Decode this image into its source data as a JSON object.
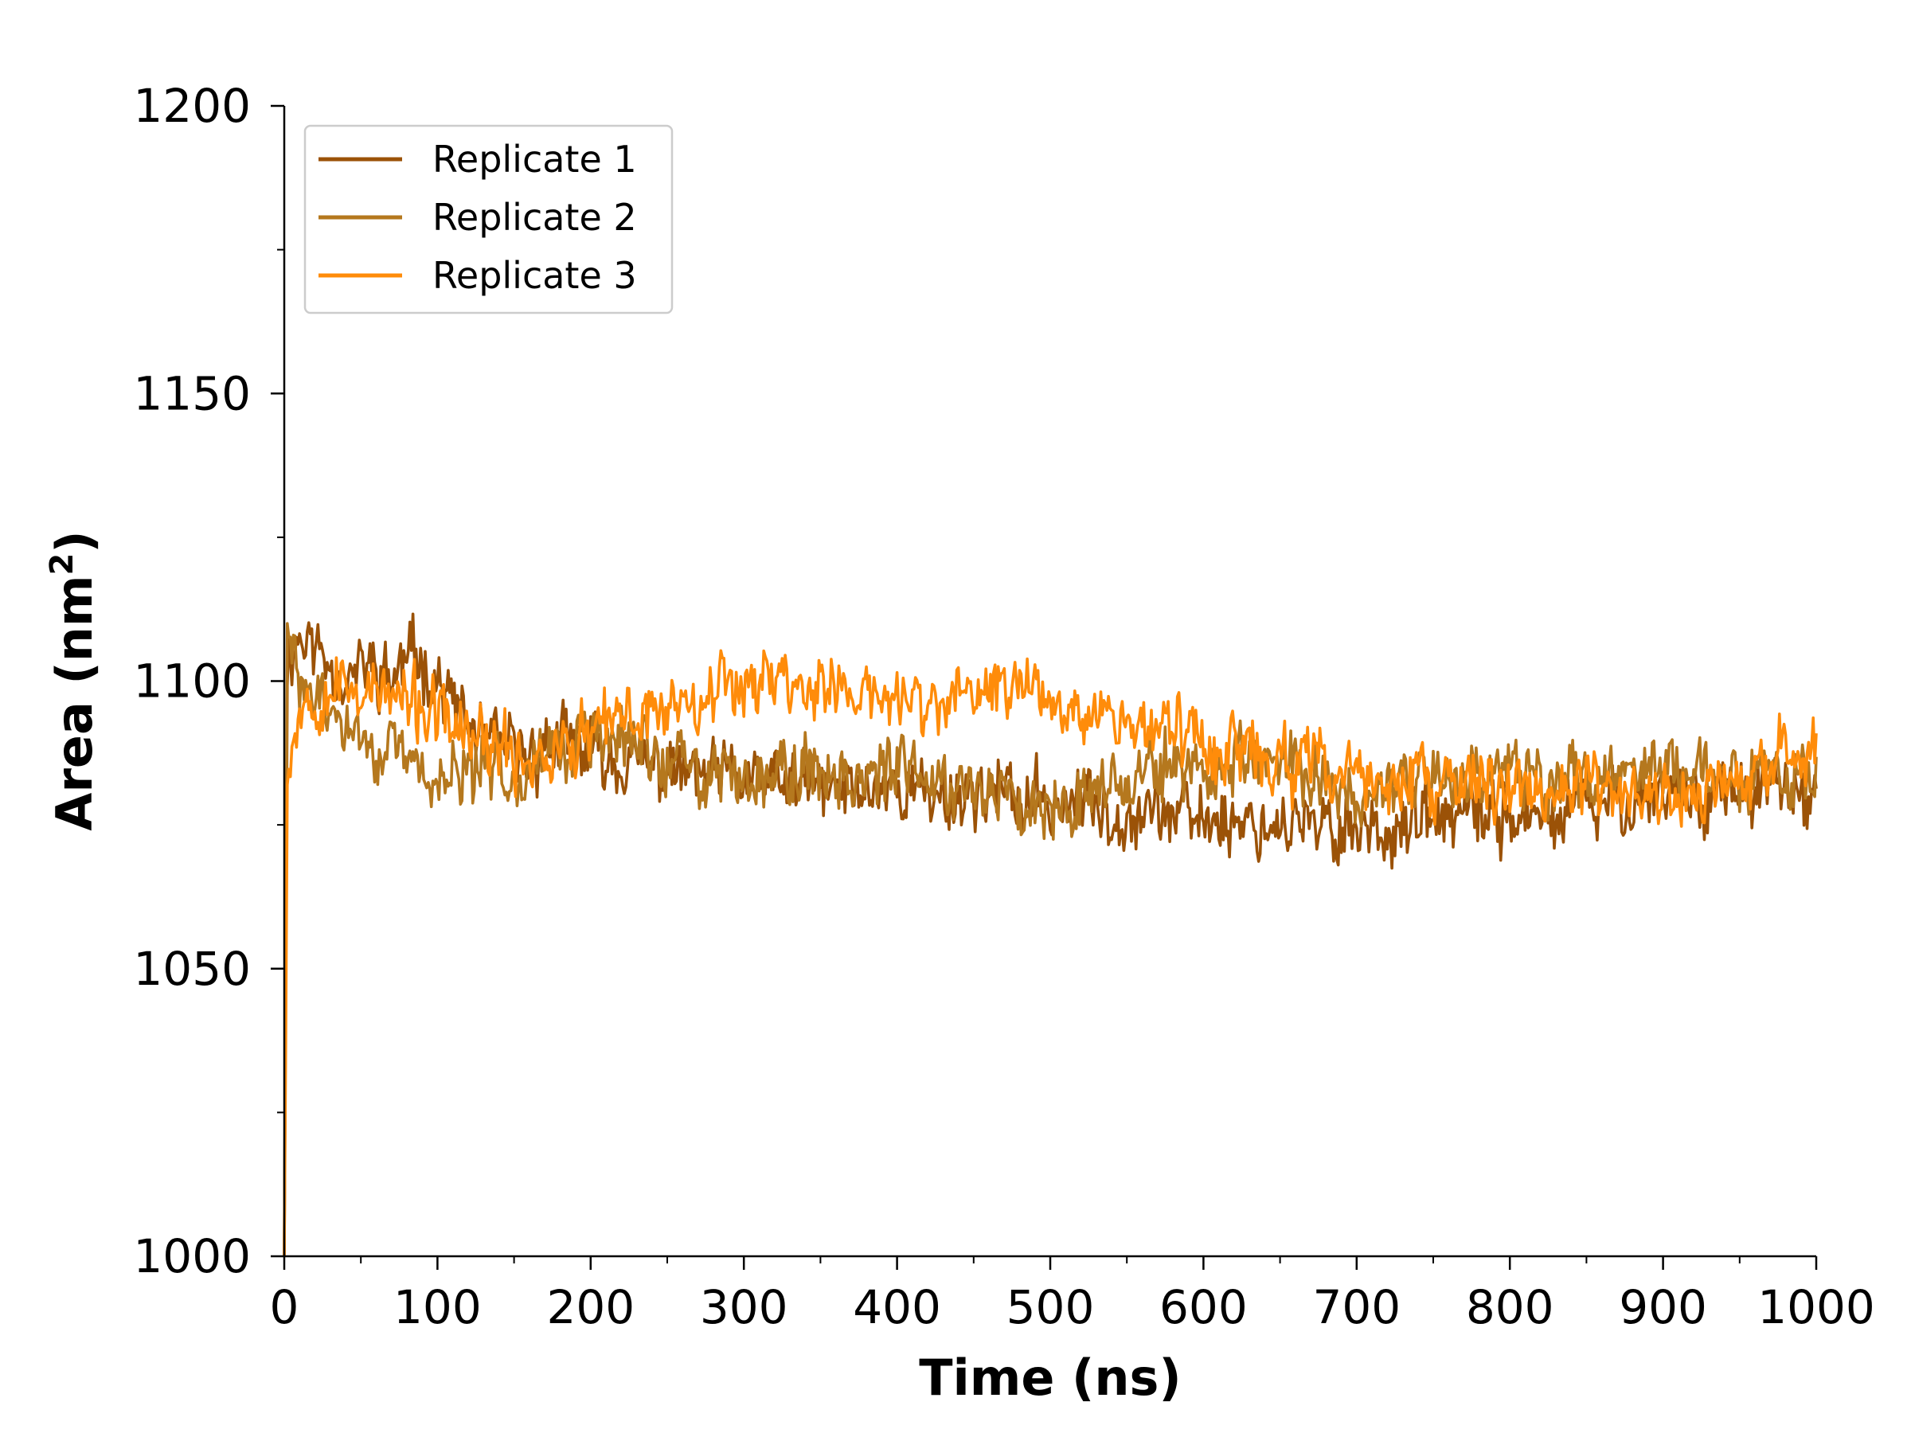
{
  "chart_data": {
    "type": "line",
    "xlabel": "Time (ns)",
    "ylabel_main": "Area (nm",
    "ylabel_sup": "2",
    "ylabel_close": ")",
    "xlim": [
      0,
      1000
    ],
    "ylim": [
      1000,
      1200
    ],
    "xticks": [
      "0",
      "100",
      "200",
      "300",
      "400",
      "500",
      "600",
      "700",
      "800",
      "900",
      "1000"
    ],
    "yticks": [
      "1000",
      "1050",
      "1100",
      "1150",
      "1200"
    ],
    "grid": false,
    "legend_position": "top-left",
    "series": [
      {
        "name": "Replicate 1",
        "color": "#9b5207",
        "points": [
          [
            0,
            1000
          ],
          [
            2,
            1104
          ],
          [
            10,
            1108
          ],
          [
            25,
            1105
          ],
          [
            40,
            1100
          ],
          [
            55,
            1103
          ],
          [
            70,
            1100
          ],
          [
            80,
            1104
          ],
          [
            90,
            1104
          ],
          [
            100,
            1100
          ],
          [
            110,
            1096
          ],
          [
            120,
            1092
          ],
          [
            140,
            1088
          ],
          [
            160,
            1087
          ],
          [
            180,
            1089
          ],
          [
            200,
            1088
          ],
          [
            220,
            1086
          ],
          [
            240,
            1085
          ],
          [
            260,
            1084
          ],
          [
            280,
            1083
          ],
          [
            300,
            1083
          ],
          [
            320,
            1082
          ],
          [
            340,
            1082
          ],
          [
            360,
            1081
          ],
          [
            380,
            1081
          ],
          [
            400,
            1082
          ],
          [
            420,
            1080
          ],
          [
            440,
            1080
          ],
          [
            460,
            1081
          ],
          [
            480,
            1079
          ],
          [
            500,
            1079
          ],
          [
            520,
            1079
          ],
          [
            540,
            1077
          ],
          [
            560,
            1078
          ],
          [
            580,
            1077
          ],
          [
            600,
            1076
          ],
          [
            620,
            1076
          ],
          [
            640,
            1075
          ],
          [
            660,
            1075
          ],
          [
            680,
            1074
          ],
          [
            700,
            1075
          ],
          [
            720,
            1074
          ],
          [
            740,
            1075
          ],
          [
            760,
            1076
          ],
          [
            780,
            1076
          ],
          [
            800,
            1077
          ],
          [
            820,
            1075
          ],
          [
            840,
            1078
          ],
          [
            860,
            1078
          ],
          [
            880,
            1080
          ],
          [
            900,
            1081
          ],
          [
            920,
            1080
          ],
          [
            940,
            1081
          ],
          [
            960,
            1080
          ],
          [
            980,
            1081
          ],
          [
            1000,
            1078
          ]
        ],
        "noise": 7,
        "seed": 11
      },
      {
        "name": "Replicate 2",
        "color": "#b5781e",
        "points": [
          [
            0,
            1000
          ],
          [
            2,
            1108
          ],
          [
            10,
            1100
          ],
          [
            30,
            1094
          ],
          [
            50,
            1090
          ],
          [
            70,
            1087
          ],
          [
            90,
            1084
          ],
          [
            110,
            1083
          ],
          [
            130,
            1084
          ],
          [
            150,
            1085
          ],
          [
            170,
            1087
          ],
          [
            190,
            1089
          ],
          [
            210,
            1090
          ],
          [
            230,
            1089
          ],
          [
            250,
            1086
          ],
          [
            270,
            1084
          ],
          [
            290,
            1084
          ],
          [
            310,
            1084
          ],
          [
            330,
            1085
          ],
          [
            350,
            1084
          ],
          [
            370,
            1084
          ],
          [
            390,
            1084
          ],
          [
            410,
            1084
          ],
          [
            430,
            1083
          ],
          [
            450,
            1082
          ],
          [
            470,
            1080
          ],
          [
            490,
            1079
          ],
          [
            510,
            1080
          ],
          [
            530,
            1082
          ],
          [
            550,
            1083
          ],
          [
            570,
            1084
          ],
          [
            590,
            1085
          ],
          [
            610,
            1085
          ],
          [
            630,
            1086
          ],
          [
            650,
            1085
          ],
          [
            670,
            1084
          ],
          [
            690,
            1081
          ],
          [
            710,
            1080
          ],
          [
            730,
            1081
          ],
          [
            750,
            1083
          ],
          [
            770,
            1084
          ],
          [
            790,
            1085
          ],
          [
            810,
            1085
          ],
          [
            830,
            1082
          ],
          [
            850,
            1083
          ],
          [
            870,
            1085
          ],
          [
            890,
            1084
          ],
          [
            910,
            1085
          ],
          [
            930,
            1085
          ],
          [
            950,
            1084
          ],
          [
            970,
            1083
          ],
          [
            1000,
            1082
          ]
        ],
        "noise": 7,
        "seed": 29
      },
      {
        "name": "Replicate 3",
        "color": "#ff8c0a",
        "points": [
          [
            0,
            1000
          ],
          [
            2,
            1085
          ],
          [
            10,
            1096
          ],
          [
            30,
            1099
          ],
          [
            50,
            1099
          ],
          [
            70,
            1097
          ],
          [
            90,
            1095
          ],
          [
            110,
            1092
          ],
          [
            130,
            1089
          ],
          [
            150,
            1087
          ],
          [
            170,
            1087
          ],
          [
            190,
            1089
          ],
          [
            210,
            1092
          ],
          [
            230,
            1094
          ],
          [
            250,
            1096
          ],
          [
            270,
            1098
          ],
          [
            290,
            1100
          ],
          [
            310,
            1101
          ],
          [
            330,
            1100
          ],
          [
            350,
            1099
          ],
          [
            370,
            1098
          ],
          [
            390,
            1097
          ],
          [
            410,
            1096
          ],
          [
            430,
            1096
          ],
          [
            450,
            1097
          ],
          [
            470,
            1100
          ],
          [
            490,
            1099
          ],
          [
            510,
            1097
          ],
          [
            530,
            1095
          ],
          [
            550,
            1093
          ],
          [
            570,
            1092
          ],
          [
            590,
            1091
          ],
          [
            610,
            1089
          ],
          [
            630,
            1087
          ],
          [
            650,
            1086
          ],
          [
            670,
            1085
          ],
          [
            690,
            1084
          ],
          [
            710,
            1083
          ],
          [
            730,
            1082
          ],
          [
            750,
            1082
          ],
          [
            770,
            1082
          ],
          [
            790,
            1082
          ],
          [
            810,
            1082
          ],
          [
            830,
            1080
          ],
          [
            850,
            1081
          ],
          [
            870,
            1081
          ],
          [
            890,
            1080
          ],
          [
            910,
            1080
          ],
          [
            930,
            1081
          ],
          [
            950,
            1082
          ],
          [
            970,
            1084
          ],
          [
            990,
            1089
          ],
          [
            1000,
            1090
          ]
        ],
        "noise": 7,
        "seed": 53
      }
    ]
  }
}
